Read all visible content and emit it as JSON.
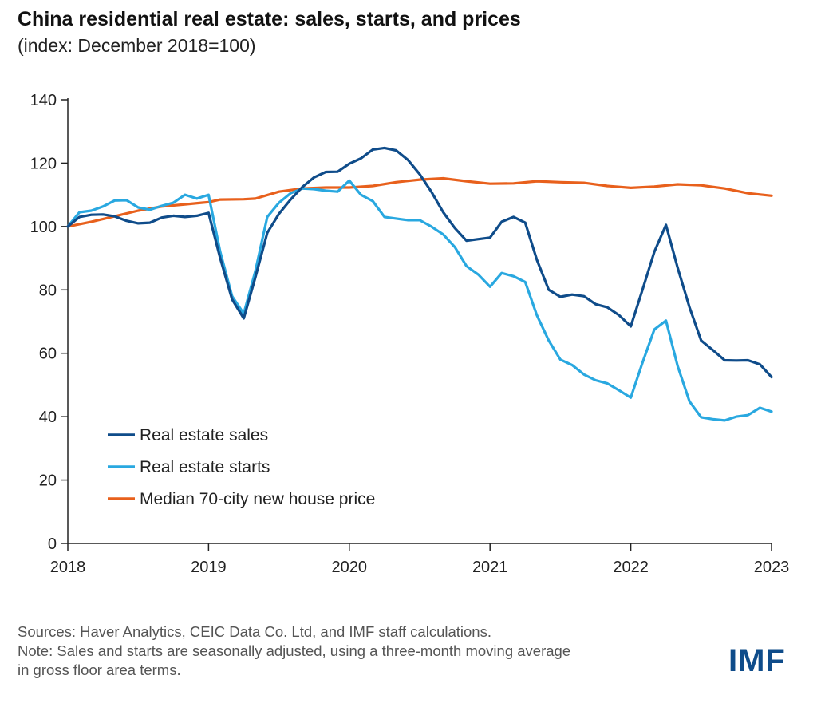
{
  "title": "China residential real estate: sales, starts, and prices",
  "subtitle": "(index: December 2018=100)",
  "sources": "Sources: Haver Analytics, CEIC Data Co. Ltd, and IMF staff calculations.",
  "note_line1": "Note: Sales and starts are seasonally adjusted, using a three-month moving average",
  "note_line2": "in gross floor area terms.",
  "logo": "IMF",
  "chart_data": {
    "type": "line",
    "title": "China residential real estate: sales, starts, and prices",
    "subtitle": "(index: December 2018=100)",
    "xlabel": "",
    "ylabel": "",
    "xlim": [
      2018,
      2023
    ],
    "ylim": [
      0,
      140
    ],
    "yticks": [
      0,
      20,
      40,
      60,
      80,
      100,
      120,
      140
    ],
    "xticks": [
      "2018",
      "2019",
      "2020",
      "2021",
      "2022",
      "2023"
    ],
    "grid": false,
    "legend_position": "lower-left",
    "series": [
      {
        "name": "Real estate sales",
        "color": "#0f4c8a",
        "x": [
          2018.0,
          2018.083,
          2018.167,
          2018.25,
          2018.333,
          2018.417,
          2018.5,
          2018.583,
          2018.667,
          2018.75,
          2018.833,
          2018.917,
          2019.0,
          2019.083,
          2019.167,
          2019.25,
          2019.333,
          2019.417,
          2019.5,
          2019.583,
          2019.667,
          2019.75,
          2019.833,
          2019.917,
          2020.0,
          2020.083,
          2020.167,
          2020.25,
          2020.333,
          2020.417,
          2020.5,
          2020.583,
          2020.667,
          2020.75,
          2020.833,
          2020.917,
          2021.0,
          2021.083,
          2021.167,
          2021.25,
          2021.333,
          2021.417,
          2021.5,
          2021.583,
          2021.667,
          2021.75,
          2021.833,
          2021.917,
          2022.0,
          2022.083,
          2022.167,
          2022.25,
          2022.333,
          2022.417,
          2022.5,
          2022.583,
          2022.667,
          2022.75,
          2022.833,
          2022.917,
          2023.0
        ],
        "values": [
          100.0,
          103.0,
          103.7,
          103.8,
          103.2,
          101.8,
          101.0,
          101.2,
          102.8,
          103.4,
          103.0,
          103.4,
          104.3,
          90.0,
          77.0,
          71.0,
          84.0,
          98.0,
          104.0,
          108.5,
          112.5,
          115.5,
          117.2,
          117.3,
          119.8,
          121.5,
          124.3,
          124.8,
          124.0,
          121.0,
          116.5,
          111.0,
          104.5,
          99.5,
          95.5,
          96.0,
          96.5,
          101.5,
          103.0,
          101.2,
          89.5,
          80.0,
          77.8,
          78.5,
          78.0,
          75.5,
          74.5,
          72.0,
          68.5,
          80.0,
          92.0,
          100.5,
          87.0,
          74.5,
          64.0,
          61.0,
          57.8,
          57.7,
          57.8,
          56.5,
          52.5
        ]
      },
      {
        "name": "Real estate starts",
        "color": "#29a8e0",
        "x": [
          2018.0,
          2018.083,
          2018.167,
          2018.25,
          2018.333,
          2018.417,
          2018.5,
          2018.583,
          2018.667,
          2018.75,
          2018.833,
          2018.917,
          2019.0,
          2019.083,
          2019.167,
          2019.25,
          2019.333,
          2019.417,
          2019.5,
          2019.583,
          2019.667,
          2019.75,
          2019.833,
          2019.917,
          2020.0,
          2020.083,
          2020.167,
          2020.25,
          2020.333,
          2020.417,
          2020.5,
          2020.583,
          2020.667,
          2020.75,
          2020.833,
          2020.917,
          2021.0,
          2021.083,
          2021.167,
          2021.25,
          2021.333,
          2021.417,
          2021.5,
          2021.583,
          2021.667,
          2021.75,
          2021.833,
          2021.917,
          2022.0,
          2022.083,
          2022.167,
          2022.25,
          2022.333,
          2022.417,
          2022.5,
          2022.583,
          2022.667,
          2022.75,
          2022.833,
          2022.917,
          2023.0
        ],
        "values": [
          100.0,
          104.5,
          105.0,
          106.3,
          108.2,
          108.3,
          106.0,
          105.3,
          106.5,
          107.5,
          110.0,
          108.8,
          110.0,
          92.0,
          78.0,
          72.5,
          86.0,
          103.0,
          107.5,
          110.5,
          112.0,
          111.8,
          111.3,
          111.0,
          114.5,
          110.0,
          108.0,
          103.0,
          102.5,
          102.0,
          102.0,
          100.0,
          97.5,
          93.5,
          87.5,
          84.8,
          81.0,
          85.3,
          84.3,
          82.5,
          72.0,
          64.0,
          58.0,
          56.3,
          53.3,
          51.5,
          50.5,
          48.3,
          46.0,
          57.0,
          67.5,
          70.3,
          56.0,
          44.8,
          39.8,
          39.2,
          38.8,
          40.0,
          40.5,
          42.8,
          41.6
        ]
      },
      {
        "name": "Median 70-city new house price",
        "color": "#e8601c",
        "x": [
          2018.0,
          2018.167,
          2018.333,
          2018.5,
          2018.667,
          2018.833,
          2019.0,
          2019.083,
          2019.25,
          2019.333,
          2019.5,
          2019.667,
          2019.833,
          2020.0,
          2020.167,
          2020.333,
          2020.5,
          2020.667,
          2020.833,
          2021.0,
          2021.167,
          2021.333,
          2021.5,
          2021.667,
          2021.833,
          2022.0,
          2022.167,
          2022.333,
          2022.5,
          2022.667,
          2022.833,
          2023.0
        ],
        "values": [
          100.0,
          101.5,
          103.2,
          105.0,
          106.3,
          107.0,
          107.7,
          108.5,
          108.6,
          108.8,
          111.0,
          112.0,
          112.3,
          112.3,
          112.8,
          114.0,
          114.8,
          115.2,
          114.3,
          113.5,
          113.6,
          114.3,
          114.0,
          113.8,
          112.8,
          112.2,
          112.6,
          113.3,
          113.0,
          112.0,
          110.5,
          109.7
        ]
      }
    ]
  }
}
